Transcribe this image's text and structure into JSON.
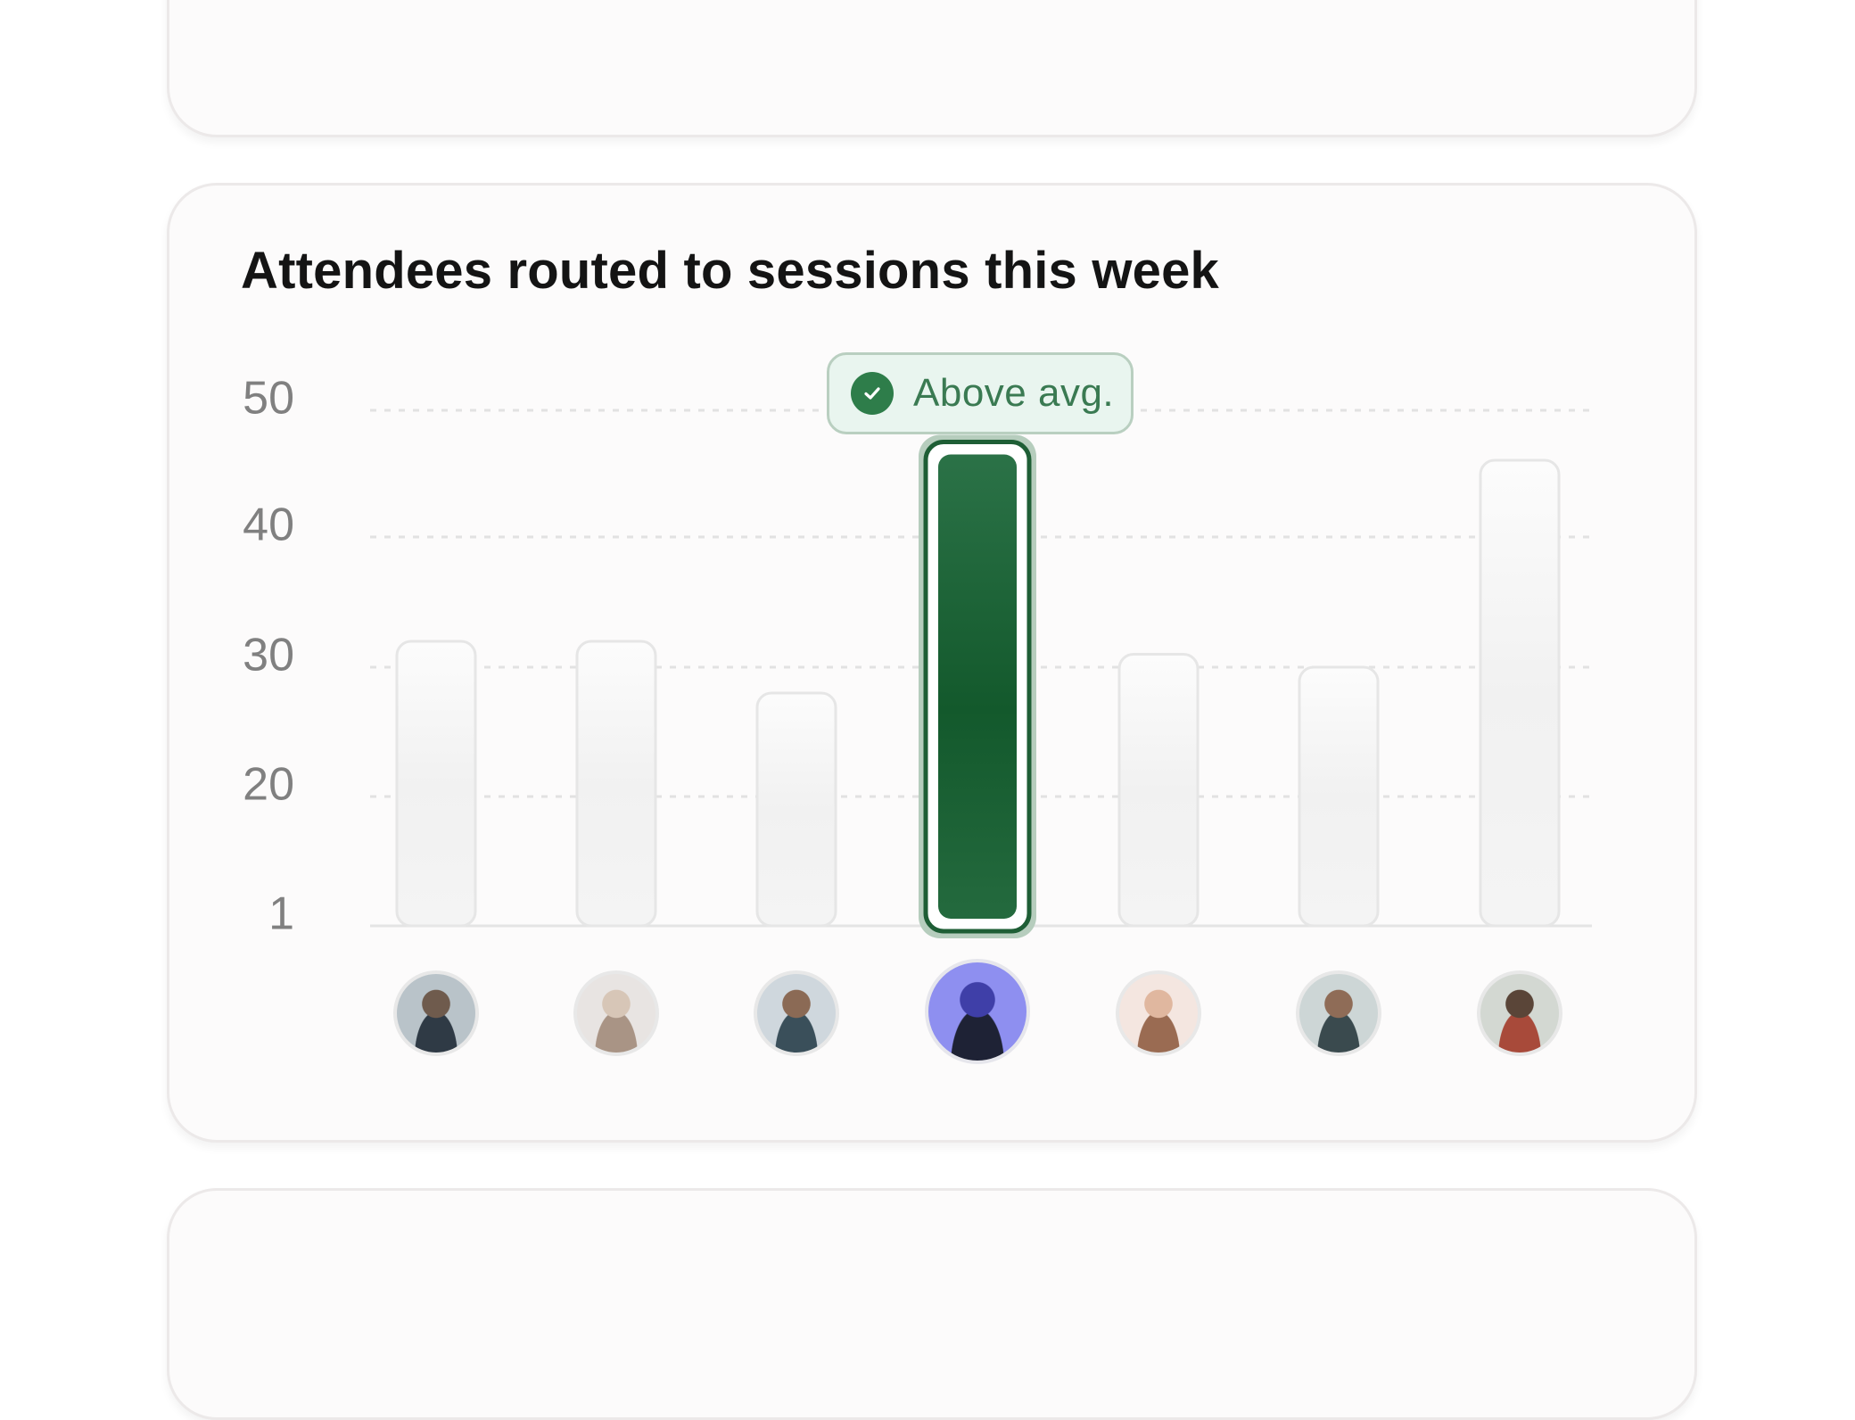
{
  "chart_data": {
    "type": "bar",
    "title": "Attendees routed to sessions this week",
    "xlabel": "",
    "ylabel": "",
    "yticks": [
      "1",
      "20",
      "30",
      "40",
      "50"
    ],
    "values": [
      32,
      32,
      28,
      47,
      31,
      30,
      46
    ],
    "highlight_index": 3,
    "highlight_label": "Above avg.",
    "grid": true,
    "colors": {
      "bar_default": "#f3f2f2",
      "bar_highlight": "#1b5e33",
      "badge_bg": "#e9f5ef",
      "badge_text": "#3a7a52",
      "tick_text": "#808080"
    },
    "categories_icons": [
      "avatar-man-dark-hair",
      "avatar-woman-light-hair",
      "avatar-woman-smiling",
      "avatar-woman-highlighted",
      "avatar-man-smiling",
      "avatar-woman-brown-hair",
      "avatar-man-glasses"
    ]
  }
}
